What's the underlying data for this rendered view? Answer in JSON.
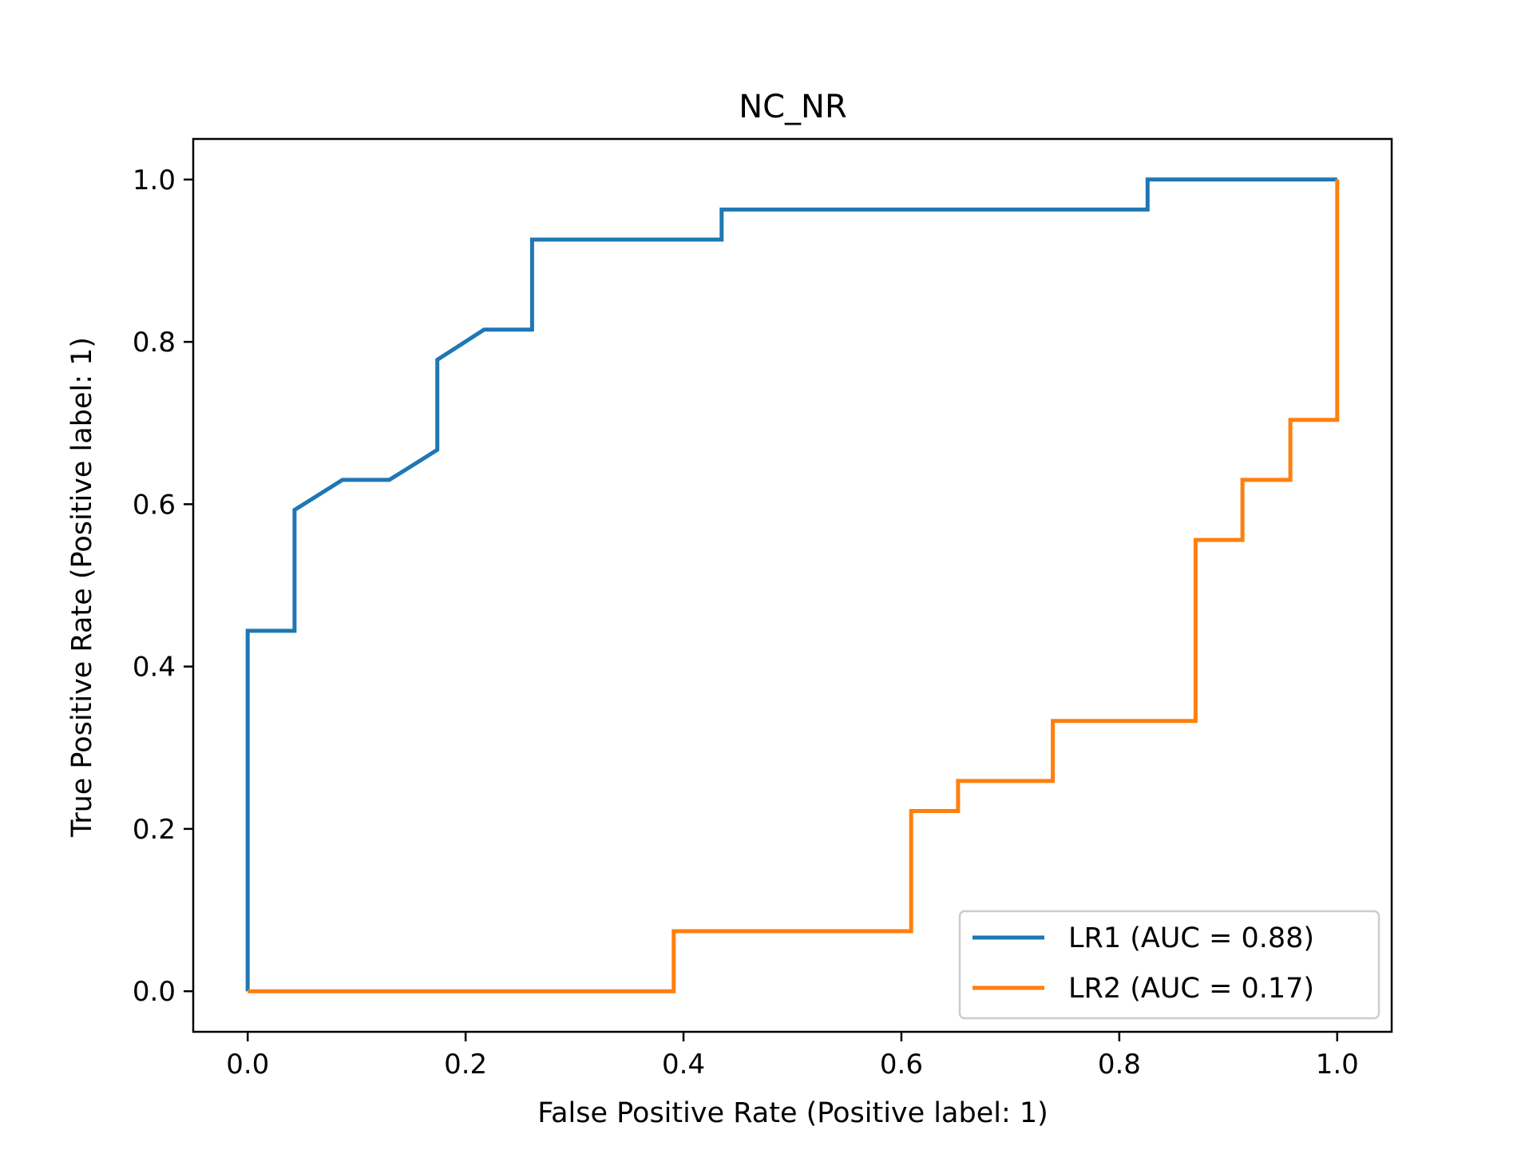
{
  "chart_data": {
    "type": "line",
    "title": "NC_NR",
    "xlabel": "False Positive Rate (Positive label: 1)",
    "ylabel": "True Positive Rate (Positive label: 1)",
    "xlim": [
      -0.05,
      1.05
    ],
    "ylim": [
      -0.05,
      1.05
    ],
    "xticks": [
      "0.0",
      "0.2",
      "0.4",
      "0.6",
      "0.8",
      "1.0"
    ],
    "yticks": [
      "0.0",
      "0.2",
      "0.4",
      "0.6",
      "0.8",
      "1.0"
    ],
    "grid": false,
    "legend_position": "lower-right",
    "series": [
      {
        "name": "LR1 (AUC = 0.88)",
        "color": "#1f77b4",
        "points": [
          [
            0.0,
            0.0
          ],
          [
            0.0,
            0.444
          ],
          [
            0.043,
            0.444
          ],
          [
            0.043,
            0.593
          ],
          [
            0.087,
            0.63
          ],
          [
            0.13,
            0.63
          ],
          [
            0.174,
            0.667
          ],
          [
            0.174,
            0.778
          ],
          [
            0.217,
            0.815
          ],
          [
            0.261,
            0.815
          ],
          [
            0.261,
            0.926
          ],
          [
            0.435,
            0.926
          ],
          [
            0.435,
            0.963
          ],
          [
            0.826,
            0.963
          ],
          [
            0.826,
            1.0
          ],
          [
            1.0,
            1.0
          ]
        ]
      },
      {
        "name": "LR2 (AUC = 0.17)",
        "color": "#ff7f0e",
        "points": [
          [
            0.0,
            0.0
          ],
          [
            0.391,
            0.0
          ],
          [
            0.391,
            0.074
          ],
          [
            0.609,
            0.074
          ],
          [
            0.609,
            0.222
          ],
          [
            0.652,
            0.222
          ],
          [
            0.652,
            0.259
          ],
          [
            0.739,
            0.259
          ],
          [
            0.739,
            0.333
          ],
          [
            0.87,
            0.333
          ],
          [
            0.87,
            0.556
          ],
          [
            0.913,
            0.556
          ],
          [
            0.913,
            0.63
          ],
          [
            0.957,
            0.63
          ],
          [
            0.957,
            0.704
          ],
          [
            1.0,
            0.704
          ],
          [
            1.0,
            1.0
          ]
        ]
      }
    ]
  }
}
